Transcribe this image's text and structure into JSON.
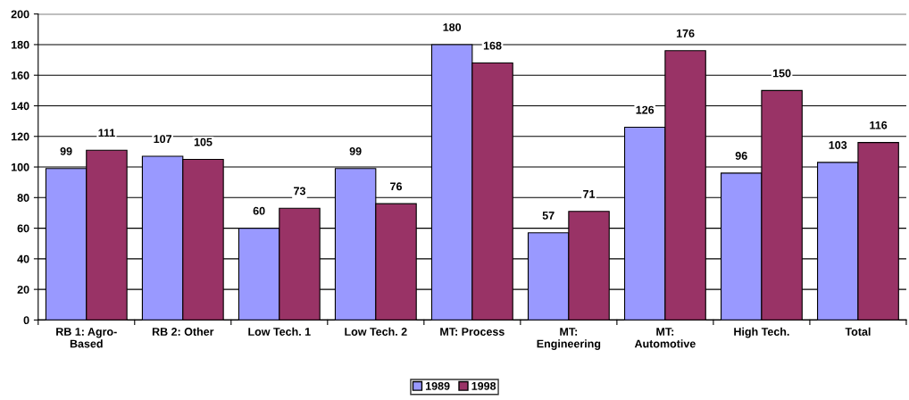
{
  "chart_data": {
    "type": "bar",
    "categories": [
      "RB 1: Agro-\nBased",
      "RB 2: Other",
      "Low Tech. 1",
      "Low Tech. 2",
      "MT: Process",
      "MT:\nEngineering",
      "MT:\nAutomotive",
      "High Tech.",
      "Total"
    ],
    "series": [
      {
        "name": "1989",
        "color": "#9999ff",
        "values": [
          99,
          107,
          60,
          99,
          180,
          57,
          126,
          96,
          103
        ]
      },
      {
        "name": "1998",
        "color": "#993366",
        "values": [
          111,
          105,
          73,
          76,
          168,
          71,
          176,
          150,
          116
        ]
      }
    ],
    "ylim": [
      0,
      200
    ],
    "yticks": [
      0,
      20,
      40,
      60,
      80,
      100,
      120,
      140,
      160,
      180,
      200
    ],
    "grid": "y",
    "legend": "bottom",
    "data_labels": true
  }
}
